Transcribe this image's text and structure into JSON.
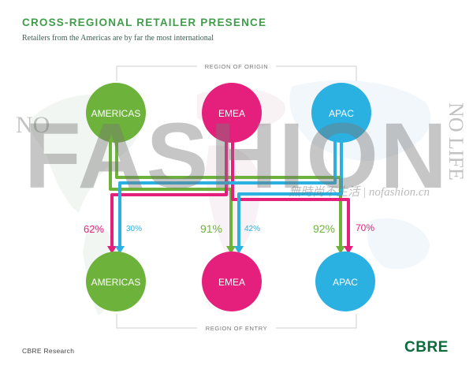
{
  "header": {
    "title": "CROSS-REGIONAL RETAILER PRESENCE",
    "subtitle": "Retailers from the Americas are by far the most international"
  },
  "diagram": {
    "top_label": "REGION OF ORIGIN",
    "bottom_label": "REGION OF ENTRY",
    "origins": [
      "AMERICAS",
      "EMEA",
      "APAC"
    ],
    "entries": [
      "AMERICAS",
      "EMEA",
      "APAC"
    ],
    "flows": [
      {
        "from": "EMEA",
        "to": "AMERICAS",
        "pct": "62%",
        "color": "#e5207c"
      },
      {
        "from": "APAC",
        "to": "AMERICAS",
        "pct": "30%",
        "color": "#2bb0e2"
      },
      {
        "from": "AMERICAS",
        "to": "EMEA",
        "pct": "91%",
        "color": "#6db23a"
      },
      {
        "from": "APAC",
        "to": "EMEA",
        "pct": "42%",
        "color": "#2bb0e2"
      },
      {
        "from": "AMERICAS",
        "to": "APAC",
        "pct": "92%",
        "color": "#6db23a"
      },
      {
        "from": "EMEA",
        "to": "APAC",
        "pct": "70%",
        "color": "#e5207c"
      }
    ],
    "colors": {
      "americas": "#6db23a",
      "emea": "#e5207c",
      "apac": "#2bb0e2"
    }
  },
  "watermark": {
    "big": "FASHION",
    "left": "NO",
    "right": "NO LIFE",
    "cn": "無時尚不生活 | nofashion.cn"
  },
  "footer": {
    "source": "CBRE Research",
    "logo": "CBRE"
  }
}
